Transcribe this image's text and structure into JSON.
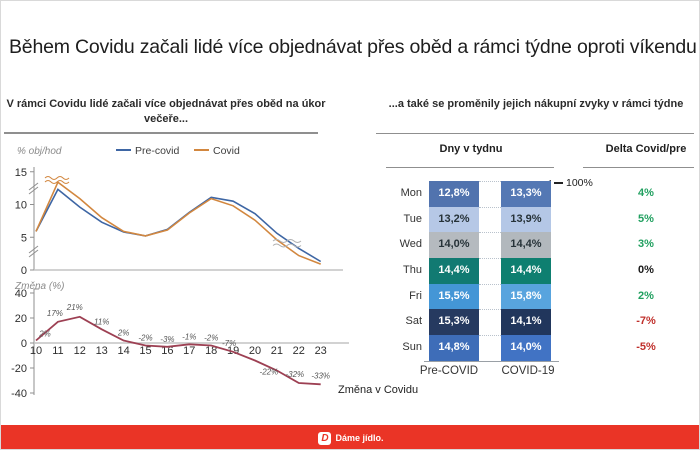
{
  "slide": {
    "title": "Během Covidu začali lidé více objednávat přes oběd a rámci týdne oproti víkendu"
  },
  "footer": {
    "logo_letter": "D",
    "brand": "Dáme jídlo.",
    "bar_color": "#ea3426",
    "logo_letter_color": "#ea3426"
  },
  "chart_data": [
    {
      "id": "hourly-share",
      "type": "line",
      "title": "V rámci Covidu lidé začali více objednávat přes oběd na úkor večeře...",
      "ylabel": "% obj/hod",
      "x": [
        10,
        11,
        12,
        13,
        14,
        15,
        16,
        17,
        18,
        19,
        20,
        21,
        22,
        23
      ],
      "ylim": [
        0,
        15
      ],
      "yticks": [
        0,
        5,
        10,
        15
      ],
      "grid": false,
      "legend_position": "top",
      "axis_breaks": true,
      "series": [
        {
          "name": "Pre-covid",
          "color": "#3e66a4",
          "values": [
            5.9,
            12.3,
            9.6,
            7.3,
            5.8,
            5.2,
            6.2,
            8.8,
            11.1,
            10.5,
            8.6,
            5.6,
            3.3,
            1.3
          ]
        },
        {
          "name": "Covid",
          "color": "#d2873f",
          "values": [
            5.9,
            13.4,
            10.9,
            8.0,
            5.9,
            5.2,
            6.1,
            8.7,
            10.9,
            9.8,
            7.6,
            4.6,
            2.2,
            0.9
          ]
        }
      ]
    },
    {
      "id": "covid-change",
      "type": "line",
      "ylabel": "Změna (%)",
      "caption": "Změna v Covidu",
      "x": [
        10,
        11,
        12,
        13,
        14,
        15,
        16,
        17,
        18,
        19,
        20,
        21,
        22,
        23
      ],
      "ylim": [
        -40,
        40
      ],
      "yticks": [
        40,
        20,
        0,
        -20,
        -40
      ],
      "grid": false,
      "series": [
        {
          "name": "Změna v Covidu",
          "color": "#9d4053",
          "values": [
            2,
            17,
            21,
            11,
            2,
            -2,
            -3,
            -1,
            -2,
            -7,
            -14,
            -22,
            -32,
            -33
          ]
        }
      ],
      "point_labels": [
        "2%",
        "17%",
        "21%",
        "11%",
        "2%",
        "-2%",
        "-3%",
        "-1%",
        "-2%",
        "-7%",
        "",
        "-22%",
        "-32%",
        "-33%"
      ],
      "label_dx": [
        9,
        -3,
        -5,
        0,
        0,
        0,
        0,
        0,
        0,
        -4,
        0,
        -8,
        -4,
        0
      ],
      "label_dy": [
        -4,
        -6,
        -7,
        -5,
        -5,
        -5,
        -5,
        -5,
        -5,
        -6,
        0,
        4,
        -6,
        -6
      ]
    },
    {
      "id": "weekday-mix",
      "type": "heatmap",
      "title": "...a také se proměnily jejich nákupní zvyky v rámci týdne",
      "group_header": "Dny v tydnu",
      "delta_header": "Delta Covid/pre",
      "columns": [
        "Pre-COVID",
        "COVID-19"
      ],
      "annotation": "100%",
      "rows": [
        {
          "day": "Mon",
          "pre": "12,8%",
          "covid": "13,3%",
          "delta": "4%",
          "pre_color": "#5173ae",
          "covid_color": "#5478b4",
          "text": "light",
          "delta_type": "pos"
        },
        {
          "day": "Tue",
          "pre": "13,2%",
          "covid": "13,9%",
          "delta": "5%",
          "pre_color": "#b6c8e6",
          "covid_color": "#b4c7e6",
          "text": "dark",
          "delta_type": "pos"
        },
        {
          "day": "Wed",
          "pre": "14,0%",
          "covid": "14,4%",
          "delta": "3%",
          "pre_color": "#b5babf",
          "covid_color": "#b2b8bd",
          "text": "dark",
          "delta_type": "pos"
        },
        {
          "day": "Thu",
          "pre": "14,4%",
          "covid": "14,4%",
          "delta": "0%",
          "pre_color": "#117a72",
          "covid_color": "#0e7f70",
          "text": "light",
          "delta_type": "zero"
        },
        {
          "day": "Fri",
          "pre": "15,5%",
          "covid": "15,8%",
          "delta": "2%",
          "pre_color": "#4496d6",
          "covid_color": "#58a4de",
          "text": "light",
          "delta_type": "pos"
        },
        {
          "day": "Sat",
          "pre": "15,3%",
          "covid": "14,1%",
          "delta": "-7%",
          "pre_color": "#263a60",
          "covid_color": "#21365c",
          "text": "light",
          "delta_type": "neg"
        },
        {
          "day": "Sun",
          "pre": "14,8%",
          "covid": "14,0%",
          "delta": "-5%",
          "pre_color": "#3e6db8",
          "covid_color": "#4173c4",
          "text": "light",
          "delta_type": "neg"
        }
      ],
      "delta_colors": {
        "pos": "#21a060",
        "neg": "#c0302c",
        "zero": "#1a1a1a"
      },
      "text_colors": {
        "light": "#ffffff",
        "dark": "#263238"
      }
    }
  ]
}
